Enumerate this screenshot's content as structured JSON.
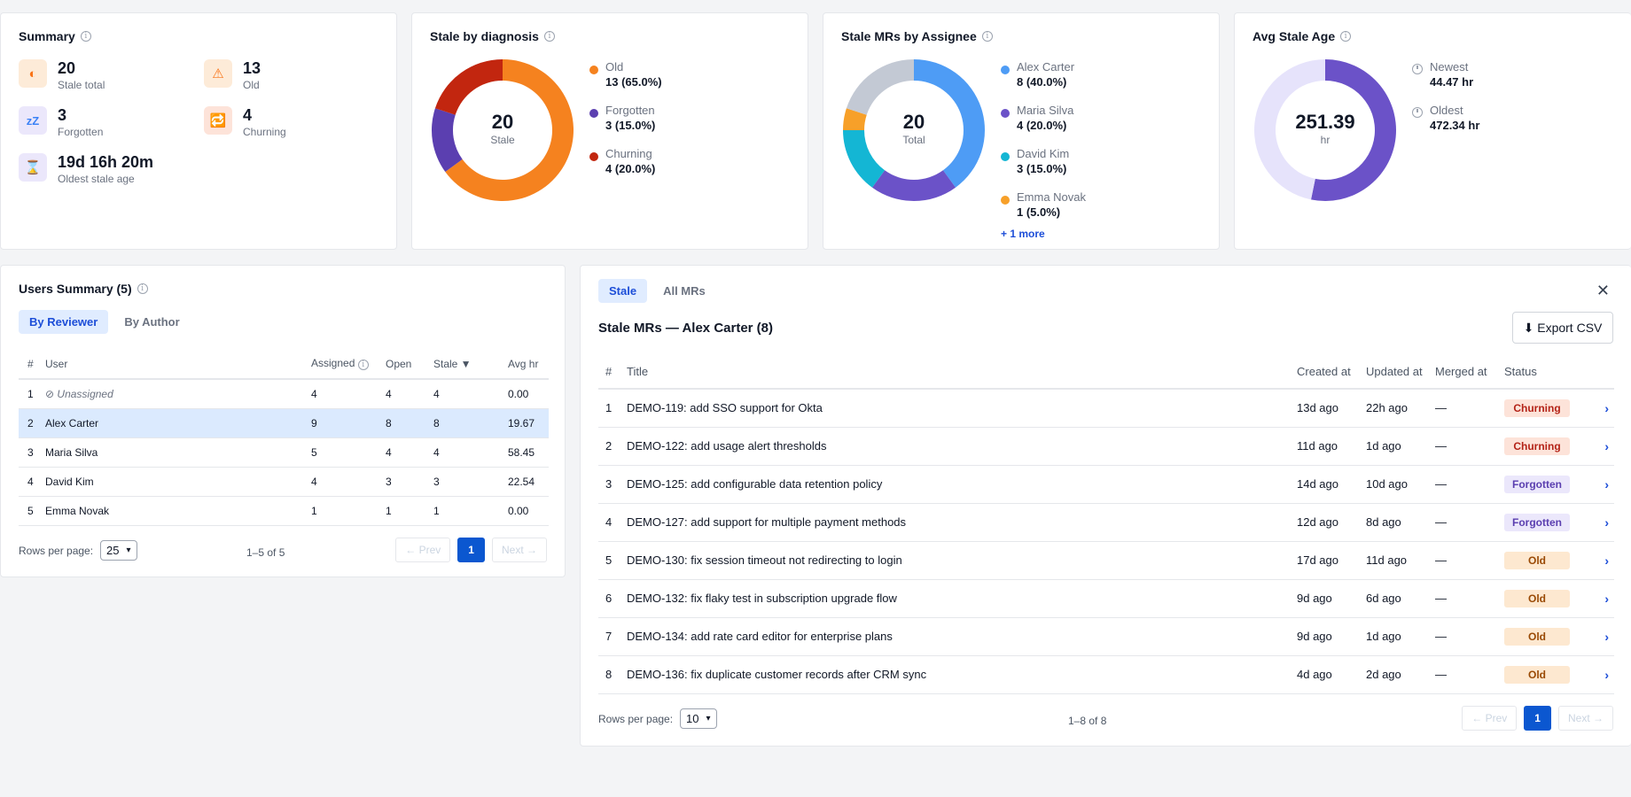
{
  "summary": {
    "title": "Summary",
    "stats": [
      {
        "value": "20",
        "label": "Stale total",
        "icon": "half-circle-icon",
        "color": "#f97316",
        "bg": "#fdebd8"
      },
      {
        "value": "13",
        "label": "Old",
        "icon": "warning-icon",
        "color": "#f97316",
        "bg": "#fdebd8"
      },
      {
        "value": "3",
        "label": "Forgotten",
        "icon": "sleep-icon",
        "color": "#3b82f6",
        "bg": "#ebe7fb"
      },
      {
        "value": "4",
        "label": "Churning",
        "icon": "repeat-icon",
        "color": "#2563eb",
        "bg": "#fde3d9"
      },
      {
        "value": "19d 16h 20m",
        "label": "Oldest stale age",
        "icon": "hourglass-icon",
        "color": "#f59e0b",
        "bg": "#ebe7fb"
      }
    ]
  },
  "diagnosis": {
    "title": "Stale by diagnosis",
    "center_value": "20",
    "center_label": "Stale",
    "items": [
      {
        "name": "Old",
        "value": 13,
        "display": "13 (65.0%)",
        "color": "#f5821f"
      },
      {
        "name": "Forgotten",
        "value": 3,
        "display": "3 (15.0%)",
        "color": "#5b3fb0"
      },
      {
        "name": "Churning",
        "value": 4,
        "display": "4 (20.0%)",
        "color": "#c2260f"
      }
    ]
  },
  "assignee": {
    "title": "Stale MRs by Assignee",
    "center_value": "20",
    "center_label": "Total",
    "items": [
      {
        "name": "Alex Carter",
        "value": 8,
        "display": "8 (40.0%)",
        "color": "#4e9cf5"
      },
      {
        "name": "Maria Silva",
        "value": 4,
        "display": "4 (20.0%)",
        "color": "#6b52c8"
      },
      {
        "name": "David Kim",
        "value": 3,
        "display": "3 (15.0%)",
        "color": "#14b6d4"
      },
      {
        "name": "Emma Novak",
        "value": 1,
        "display": "1 (5.0%)",
        "color": "#f7a029"
      }
    ],
    "hidden_rest": {
      "value": 4,
      "color": "#c3c9d4"
    },
    "more_label": "+ 1 more"
  },
  "avg_age": {
    "title": "Avg Stale Age",
    "center_value": "251.39",
    "center_label": "hr",
    "fill_fraction": 0.532,
    "fill_color": "#6b52c8",
    "track_color": "#e6e3fb",
    "newest_label": "Newest",
    "newest_value": "44.47 hr",
    "oldest_label": "Oldest",
    "oldest_value": "472.34 hr"
  },
  "users": {
    "title": "Users Summary (5)",
    "tabs": [
      "By Reviewer",
      "By Author"
    ],
    "columns": [
      "#",
      "User",
      "Assigned",
      "Open",
      "Stale ▼",
      "Avg hr"
    ],
    "rows": [
      {
        "n": "1",
        "user": "Unassigned",
        "assigned": "4",
        "open": "4",
        "stale": "4",
        "avg": "0.00"
      },
      {
        "n": "2",
        "user": "Alex Carter",
        "assigned": "9",
        "open": "8",
        "stale": "8",
        "avg": "19.67"
      },
      {
        "n": "3",
        "user": "Maria Silva",
        "assigned": "5",
        "open": "4",
        "stale": "4",
        "avg": "58.45"
      },
      {
        "n": "4",
        "user": "David Kim",
        "assigned": "4",
        "open": "3",
        "stale": "3",
        "avg": "22.54"
      },
      {
        "n": "5",
        "user": "Emma Novak",
        "assigned": "1",
        "open": "1",
        "stale": "1",
        "avg": "0.00"
      }
    ],
    "rows_per_page_label": "Rows per page:",
    "rows_per_page": "25",
    "range": "1–5 of 5",
    "prev": "← Prev",
    "page": "1",
    "next": "Next →"
  },
  "mrs": {
    "tabs": [
      "Stale",
      "All MRs"
    ],
    "title": "Stale MRs — Alex Carter (8)",
    "export_label": "⬇ Export CSV",
    "close_label": "✕",
    "columns": [
      "#",
      "Title",
      "Created at",
      "Updated at",
      "Merged at",
      "Status"
    ],
    "rows": [
      {
        "n": "1",
        "title": "DEMO-119: add SSO support for Okta",
        "created": "13d ago",
        "updated": "22h ago",
        "merged": "—",
        "status": "Churning"
      },
      {
        "n": "2",
        "title": "DEMO-122: add usage alert thresholds",
        "created": "11d ago",
        "updated": "1d ago",
        "merged": "—",
        "status": "Churning"
      },
      {
        "n": "3",
        "title": "DEMO-125: add configurable data retention policy",
        "created": "14d ago",
        "updated": "10d ago",
        "merged": "—",
        "status": "Forgotten"
      },
      {
        "n": "4",
        "title": "DEMO-127: add support for multiple payment methods",
        "created": "12d ago",
        "updated": "8d ago",
        "merged": "—",
        "status": "Forgotten"
      },
      {
        "n": "5",
        "title": "DEMO-130: fix session timeout not redirecting to login",
        "created": "17d ago",
        "updated": "11d ago",
        "merged": "—",
        "status": "Old"
      },
      {
        "n": "6",
        "title": "DEMO-132: fix flaky test in subscription upgrade flow",
        "created": "9d ago",
        "updated": "6d ago",
        "merged": "—",
        "status": "Old"
      },
      {
        "n": "7",
        "title": "DEMO-134: add rate card editor for enterprise plans",
        "created": "9d ago",
        "updated": "1d ago",
        "merged": "—",
        "status": "Old"
      },
      {
        "n": "8",
        "title": "DEMO-136: fix duplicate customer records after CRM sync",
        "created": "4d ago",
        "updated": "2d ago",
        "merged": "—",
        "status": "Old"
      }
    ],
    "row_chevron": "›",
    "rows_per_page_label": "Rows per page:",
    "rows_per_page": "10",
    "range": "1–8 of 8",
    "prev": "← Prev",
    "page": "1",
    "next": "Next →"
  }
}
